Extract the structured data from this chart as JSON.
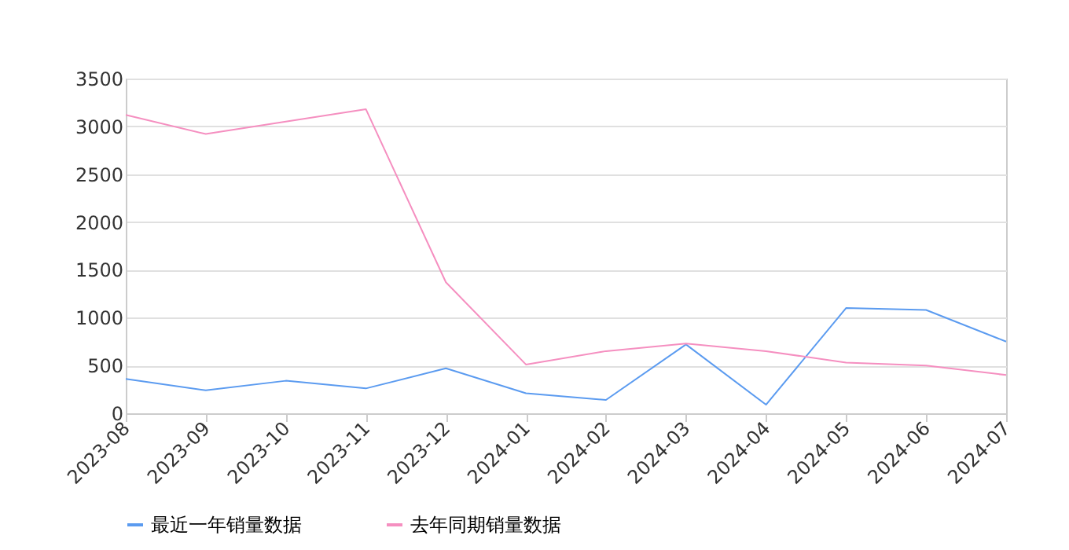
{
  "chart_data": {
    "type": "line",
    "categories": [
      "2023-08",
      "2023-09",
      "2023-10",
      "2023-11",
      "2023-12",
      "2024-01",
      "2024-02",
      "2024-03",
      "2024-04",
      "2024-05",
      "2024-06",
      "2024-07"
    ],
    "series": [
      {
        "name": "最近一年销量数据",
        "color": "#5b9bf0",
        "values": [
          360,
          240,
          340,
          260,
          470,
          210,
          140,
          720,
          90,
          1100,
          1080,
          750
        ]
      },
      {
        "name": "去年同期销量数据",
        "color": "#f58fc0",
        "values": [
          3120,
          2920,
          3050,
          3180,
          1370,
          510,
          650,
          730,
          650,
          530,
          500,
          400
        ]
      }
    ],
    "ylim": [
      0,
      3500
    ],
    "yticks": [
      0,
      500,
      1000,
      1500,
      2000,
      2500,
      3000,
      3500
    ],
    "grid": "y",
    "legend": "bottom",
    "marker": "none",
    "line_style": "solid"
  }
}
